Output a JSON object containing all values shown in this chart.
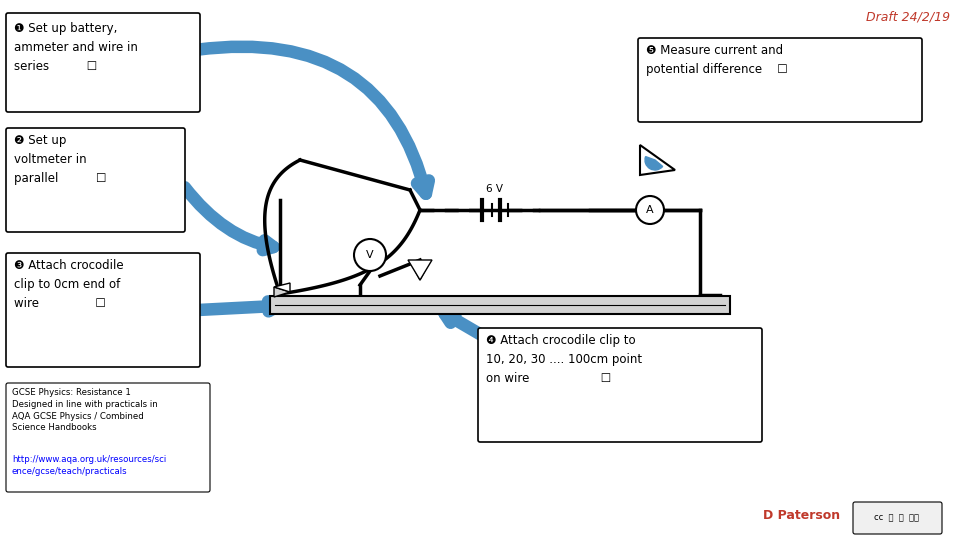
{
  "title_draft": "Draft 24/2/19",
  "title_color": "#c0392b",
  "background_color": "#ffffff",
  "arrow_color": "#4a90c4",
  "box_border_color": "#000000",
  "circuit_color": "#000000",
  "step1_text": "❶ Set up battery,\nammeter and wire in\nseries          ☐",
  "step2_text": "❷ Set up\nvoltmeter in\nparallel          ☐",
  "step3_text": "❸ Attach crocodile\nclip to 0cm end of\nwire               ☐",
  "step4_text": "❹ Attach crocodile clip to\n10, 20, 30 .... 100cm point\non wire                   ☐",
  "step5_text": "❺ Measure current and\npotential difference    ☐",
  "gcse_text": "GCSE Physics: Resistance 1\nDesigned in line with practicals in\nAQA GCSE Physics / Combined\nScience Handbooks\nhttp://www.aqa.org.uk/resources/sci\nence/gcse/teach/practicals",
  "gcse_url": "http://www.aqa.org.uk/resources/science/gcse/teach/practicals",
  "dpaterson_text": "D Paterson",
  "dpaterson_color": "#c0392b"
}
